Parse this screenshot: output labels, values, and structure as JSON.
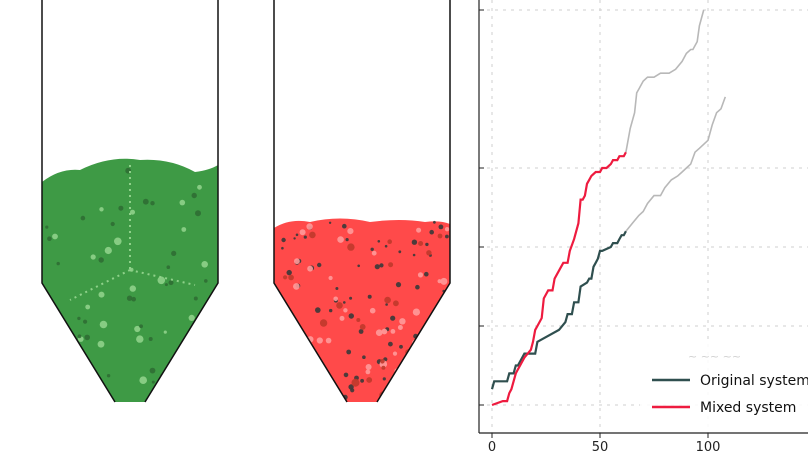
{
  "silos": [
    {
      "name": "original",
      "fill_color": "#3e9a45",
      "speckle_color": "#8fd18a",
      "outline_color": "#111111"
    },
    {
      "name": "mixed",
      "fill_color": "#ff4a4a",
      "speckle_color": "#3a3a3a",
      "outline_color": "#111111"
    }
  ],
  "chart_data": {
    "type": "line",
    "title": "",
    "xlabel": "",
    "ylabel": "",
    "xlim": [
      -5,
      108
    ],
    "ylim": [
      0,
      1
    ],
    "x_ticks": [
      0,
      50,
      100
    ],
    "x_tick_labels": [
      "0",
      "50",
      "100"
    ],
    "grid": true,
    "legend": {
      "placement": "bottom-right"
    },
    "series": [
      {
        "name": "Original system",
        "color": "#2f4f4f",
        "x": [
          0,
          1,
          7,
          8,
          10,
          11,
          12,
          14,
          15,
          20,
          21,
          31,
          34,
          35,
          37,
          38,
          40,
          41,
          44,
          45,
          46,
          47,
          48,
          49,
          50,
          51,
          55,
          56,
          58,
          59,
          60,
          61,
          62
        ],
        "y": [
          0.04,
          0.06,
          0.06,
          0.08,
          0.08,
          0.1,
          0.1,
          0.12,
          0.13,
          0.13,
          0.16,
          0.19,
          0.21,
          0.23,
          0.23,
          0.26,
          0.26,
          0.3,
          0.31,
          0.32,
          0.32,
          0.35,
          0.36,
          0.37,
          0.39,
          0.39,
          0.4,
          0.41,
          0.41,
          0.42,
          0.43,
          0.43,
          0.44
        ]
      },
      {
        "name": "Mixed system",
        "color": "#ee1b3f",
        "x": [
          0,
          5,
          7,
          8,
          9,
          10,
          11,
          12,
          13,
          14,
          15,
          18,
          19,
          20,
          21,
          23,
          24,
          25,
          26,
          28,
          29,
          32,
          33,
          35,
          36,
          38,
          40,
          41,
          42,
          43,
          44,
          45,
          46,
          48,
          50,
          51,
          53,
          55,
          56,
          58,
          59,
          60,
          61,
          62
        ],
        "y": [
          0.0,
          0.01,
          0.01,
          0.03,
          0.04,
          0.06,
          0.08,
          0.09,
          0.1,
          0.11,
          0.12,
          0.14,
          0.16,
          0.19,
          0.2,
          0.22,
          0.27,
          0.28,
          0.29,
          0.29,
          0.32,
          0.35,
          0.36,
          0.36,
          0.39,
          0.42,
          0.46,
          0.52,
          0.52,
          0.53,
          0.56,
          0.57,
          0.58,
          0.59,
          0.59,
          0.6,
          0.6,
          0.61,
          0.62,
          0.62,
          0.63,
          0.63,
          0.63,
          0.64
        ]
      },
      {
        "name": "",
        "color": "#b8b8b8",
        "x": [
          62,
          64,
          66,
          67,
          68,
          70,
          72,
          75,
          78,
          82,
          85,
          88,
          90,
          92,
          93,
          95,
          96,
          98
        ],
        "y": [
          0.64,
          0.7,
          0.74,
          0.79,
          0.8,
          0.82,
          0.83,
          0.83,
          0.84,
          0.84,
          0.85,
          0.87,
          0.89,
          0.9,
          0.9,
          0.92,
          0.96,
          1.0
        ]
      },
      {
        "name": "",
        "color": "#b8b8b8",
        "x": [
          62,
          65,
          68,
          70,
          72,
          75,
          78,
          80,
          83,
          86,
          88,
          90,
          92,
          94,
          96,
          98,
          100,
          102,
          104,
          106,
          108
        ],
        "y": [
          0.44,
          0.46,
          0.48,
          0.49,
          0.51,
          0.53,
          0.53,
          0.55,
          0.57,
          0.58,
          0.59,
          0.6,
          0.61,
          0.64,
          0.65,
          0.66,
          0.67,
          0.71,
          0.74,
          0.75,
          0.78
        ]
      }
    ]
  },
  "legend_entries": [
    {
      "label": "Original system",
      "color": "#2f4f4f"
    },
    {
      "label": "Mixed system",
      "color": "#ee1b3f"
    }
  ]
}
